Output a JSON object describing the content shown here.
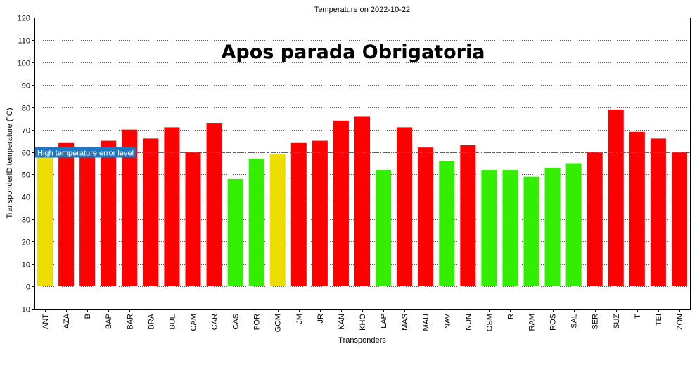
{
  "chart_data": {
    "type": "bar",
    "title": "Temperature on 2022-10-22",
    "annotation": "Apos parada Obrigatoria",
    "xlabel": "Transponders",
    "ylabel": "TransponderID temperature (°C)",
    "ylim": [
      -10,
      120
    ],
    "ytick_step": 10,
    "grid": true,
    "reference_line": {
      "label": "High temperature error level",
      "value": 60,
      "color": "#1f77c4"
    },
    "colors": {
      "above_limit": "#ff0000",
      "below_limit": "#33ee00",
      "near_limit": "#eedd00"
    },
    "categories": [
      "ANT",
      "AZA",
      "B",
      "BAP",
      "BAR",
      "BRA",
      "BUE",
      "CAM",
      "CAR",
      "CAS",
      "FOR",
      "GOM",
      "JM",
      "JR",
      "KAN",
      "KHO",
      "LAP",
      "MAS",
      "MAU",
      "NAV",
      "NUN",
      "OSM",
      "R",
      "RAM",
      "ROS",
      "SAL",
      "SER",
      "SUZ",
      "T",
      "TEI",
      "ZON"
    ],
    "values": [
      59,
      64,
      60,
      65,
      70,
      66,
      71,
      60,
      73,
      48,
      57,
      59,
      64,
      65,
      74,
      76,
      52,
      71,
      62,
      56,
      63,
      52,
      52,
      49,
      53,
      55,
      60,
      79,
      69,
      66,
      60
    ],
    "bar_status": [
      "near_limit",
      "above_limit",
      "above_limit",
      "above_limit",
      "above_limit",
      "above_limit",
      "above_limit",
      "above_limit",
      "above_limit",
      "below_limit",
      "below_limit",
      "near_limit",
      "above_limit",
      "above_limit",
      "above_limit",
      "above_limit",
      "below_limit",
      "above_limit",
      "above_limit",
      "below_limit",
      "above_limit",
      "below_limit",
      "below_limit",
      "below_limit",
      "below_limit",
      "below_limit",
      "above_limit",
      "above_limit",
      "above_limit",
      "above_limit",
      "above_limit"
    ]
  }
}
